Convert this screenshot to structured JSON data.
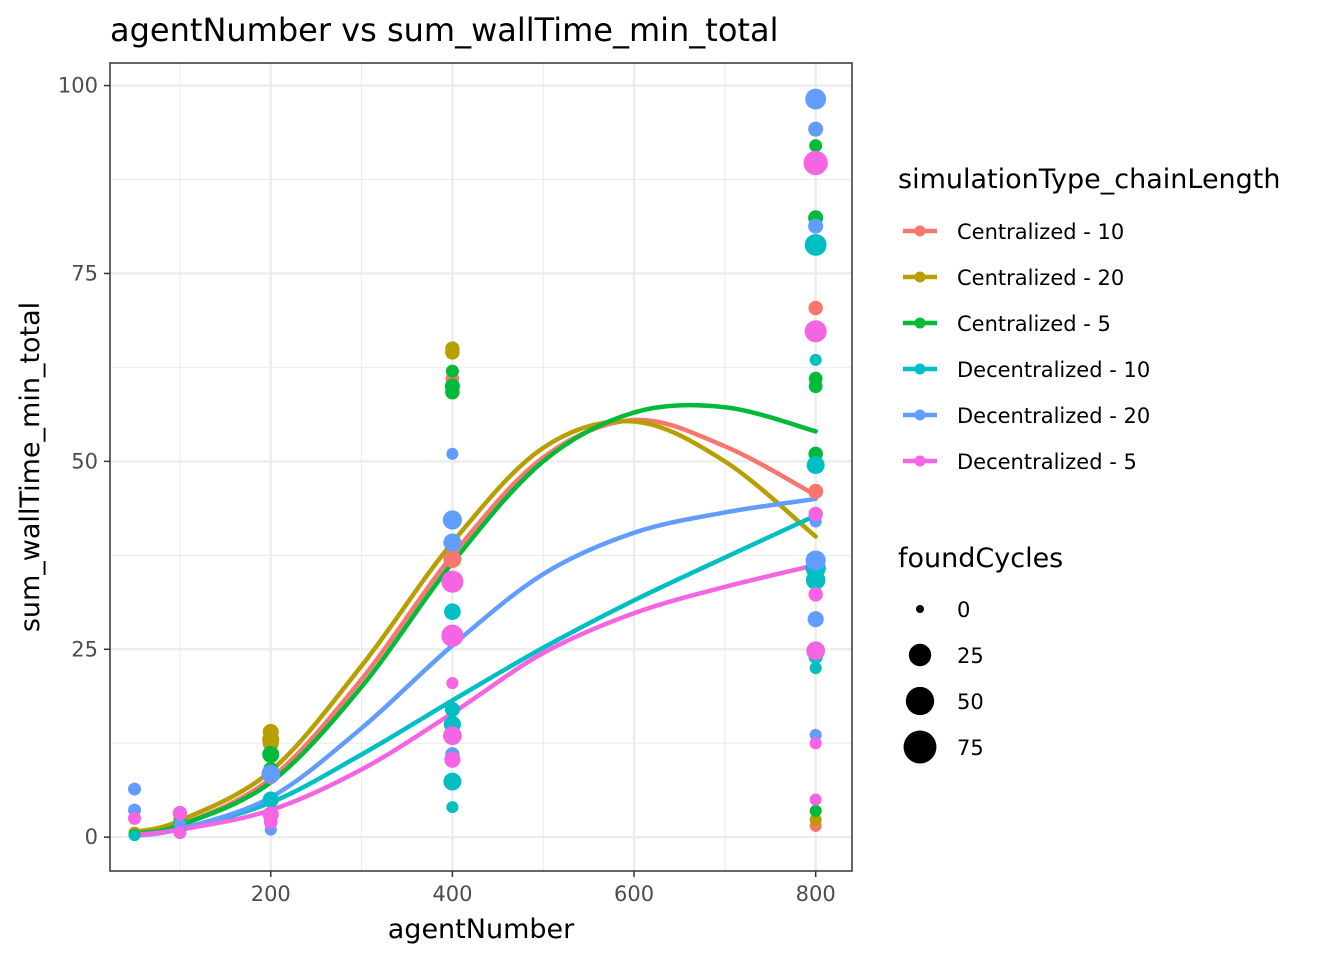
{
  "chart_data": {
    "type": "scatter",
    "title": "agentNumber  vs  sum_wallTime_min_total",
    "xlabel": "agentNumber",
    "ylabel": "sum_wallTime_min_total",
    "xlim": [
      23,
      840
    ],
    "ylim": [
      -4.5,
      103
    ],
    "x_ticks": [
      200,
      400,
      600,
      800
    ],
    "y_ticks": [
      0,
      25,
      50,
      75,
      100
    ],
    "grid": true,
    "legend_position": "right",
    "color_legend": {
      "title": "simulationType_chainLength",
      "entries": [
        {
          "label": "Centralized - 10",
          "color": "#F8766D"
        },
        {
          "label": "Centralized - 20",
          "color": "#B79F00"
        },
        {
          "label": "Centralized - 5",
          "color": "#00BA38"
        },
        {
          "label": "Decentralized - 10",
          "color": "#00BFC4"
        },
        {
          "label": "Decentralized - 20",
          "color": "#619CFF"
        },
        {
          "label": "Decentralized - 5",
          "color": "#F564E3"
        }
      ]
    },
    "size_legend": {
      "title": "foundCycles",
      "entries": [
        "0",
        "25",
        "50",
        "75"
      ],
      "values": [
        0,
        25,
        50,
        75
      ]
    },
    "series": [
      {
        "name": "Centralized - 10",
        "color": "#F8766D",
        "points": [
          [
            50,
            0.5,
            1
          ],
          [
            100,
            1.5,
            2
          ],
          [
            200,
            8,
            5
          ],
          [
            200,
            11,
            6
          ],
          [
            400,
            61,
            4
          ],
          [
            400,
            37,
            12
          ],
          [
            800,
            70.4,
            5
          ],
          [
            800,
            46,
            6
          ],
          [
            800,
            1.5,
            2
          ]
        ],
        "smooth": [
          [
            50,
            0.6
          ],
          [
            100,
            1.6
          ],
          [
            200,
            7.8
          ],
          [
            300,
            21
          ],
          [
            400,
            37.5
          ],
          [
            500,
            50.5
          ],
          [
            600,
            55.5
          ],
          [
            700,
            52
          ],
          [
            800,
            45.5
          ]
        ]
      },
      {
        "name": "Centralized - 20",
        "color": "#B79F00",
        "points": [
          [
            50,
            0.6,
            2
          ],
          [
            100,
            2.4,
            3
          ],
          [
            200,
            14,
            8
          ],
          [
            200,
            13,
            10
          ],
          [
            200,
            12.5,
            8
          ],
          [
            400,
            65,
            5
          ],
          [
            400,
            64.5,
            5
          ],
          [
            800,
            49.5,
            8
          ],
          [
            800,
            2.3,
            2
          ]
        ],
        "smooth": [
          [
            50,
            0.7
          ],
          [
            100,
            2.2
          ],
          [
            200,
            8.8
          ],
          [
            300,
            22.8
          ],
          [
            400,
            39.2
          ],
          [
            500,
            51.8
          ],
          [
            600,
            55.3
          ],
          [
            700,
            50
          ],
          [
            800,
            40
          ]
        ]
      },
      {
        "name": "Centralized - 5",
        "color": "#00BA38",
        "points": [
          [
            50,
            0.3,
            2
          ],
          [
            100,
            2,
            3
          ],
          [
            200,
            11,
            10
          ],
          [
            200,
            9,
            6
          ],
          [
            400,
            60,
            6
          ],
          [
            400,
            59.2,
            5
          ],
          [
            400,
            62,
            3
          ],
          [
            800,
            82.4,
            6
          ],
          [
            800,
            92,
            3
          ],
          [
            800,
            61,
            4
          ],
          [
            800,
            60,
            4
          ],
          [
            800,
            51,
            5
          ],
          [
            800,
            3.5,
            2
          ]
        ],
        "smooth": [
          [
            50,
            0.5
          ],
          [
            100,
            1.6
          ],
          [
            200,
            7.3
          ],
          [
            300,
            20
          ],
          [
            400,
            36.5
          ],
          [
            500,
            50
          ],
          [
            600,
            56.5
          ],
          [
            700,
            57.2
          ],
          [
            800,
            54
          ]
        ]
      },
      {
        "name": "Decentralized - 10",
        "color": "#00BFC4",
        "points": [
          [
            50,
            0.2,
            1
          ],
          [
            100,
            1,
            2
          ],
          [
            200,
            5,
            8
          ],
          [
            200,
            3,
            4
          ],
          [
            400,
            30,
            9
          ],
          [
            400,
            17,
            6
          ],
          [
            400,
            15,
            10
          ],
          [
            400,
            7.4,
            12
          ],
          [
            400,
            4,
            2
          ],
          [
            800,
            78.8,
            23
          ],
          [
            800,
            35.8,
            18
          ],
          [
            800,
            34.2,
            16
          ],
          [
            800,
            49.5,
            12
          ],
          [
            800,
            63.5,
            2
          ],
          [
            800,
            24,
            5
          ],
          [
            800,
            22.5,
            2
          ]
        ],
        "smooth": [
          [
            50,
            0.3
          ],
          [
            100,
            1.1
          ],
          [
            200,
            4.6
          ],
          [
            300,
            11
          ],
          [
            400,
            18.2
          ],
          [
            500,
            25.2
          ],
          [
            600,
            31.5
          ],
          [
            700,
            37.2
          ],
          [
            800,
            42.8
          ]
        ]
      },
      {
        "name": "Decentralized - 20",
        "color": "#619CFF",
        "points": [
          [
            50,
            6.4,
            3
          ],
          [
            50,
            3.6,
            3
          ],
          [
            100,
            1.8,
            2
          ],
          [
            200,
            8.4,
            14
          ],
          [
            200,
            1,
            2
          ],
          [
            400,
            42.2,
            15
          ],
          [
            400,
            39.2,
            12
          ],
          [
            400,
            51,
            2
          ],
          [
            400,
            11,
            5
          ],
          [
            800,
            98.2,
            20
          ],
          [
            800,
            94.2,
            6
          ],
          [
            800,
            81.3,
            6
          ],
          [
            800,
            36.8,
            18
          ],
          [
            800,
            29,
            8
          ],
          [
            800,
            13.6,
            2
          ],
          [
            800,
            42,
            2
          ]
        ],
        "smooth": [
          [
            50,
            0.2
          ],
          [
            100,
            1.1
          ],
          [
            200,
            5.3
          ],
          [
            300,
            14.5
          ],
          [
            400,
            25.5
          ],
          [
            500,
            35
          ],
          [
            600,
            40.5
          ],
          [
            700,
            43.2
          ],
          [
            800,
            45
          ]
        ]
      },
      {
        "name": "Decentralized - 5",
        "color": "#F564E3",
        "points": [
          [
            50,
            2.5,
            3
          ],
          [
            100,
            0.6,
            3
          ],
          [
            100,
            3.2,
            5
          ],
          [
            200,
            3,
            8
          ],
          [
            200,
            2,
            4
          ],
          [
            400,
            34,
            24
          ],
          [
            400,
            26.8,
            24
          ],
          [
            400,
            13.5,
            14
          ],
          [
            400,
            10.3,
            8
          ],
          [
            400,
            20.5,
            2
          ],
          [
            800,
            89.7,
            32
          ],
          [
            800,
            67.3,
            24
          ],
          [
            800,
            24.8,
            14
          ],
          [
            800,
            43,
            5
          ],
          [
            800,
            32.3,
            5
          ],
          [
            800,
            12.5,
            2
          ],
          [
            800,
            5,
            2
          ]
        ],
        "smooth": [
          [
            50,
            0.3
          ],
          [
            100,
            1
          ],
          [
            200,
            3.6
          ],
          [
            300,
            9
          ],
          [
            400,
            16.5
          ],
          [
            500,
            24.5
          ],
          [
            600,
            29.8
          ],
          [
            700,
            33.3
          ],
          [
            800,
            36.2
          ]
        ]
      }
    ]
  }
}
